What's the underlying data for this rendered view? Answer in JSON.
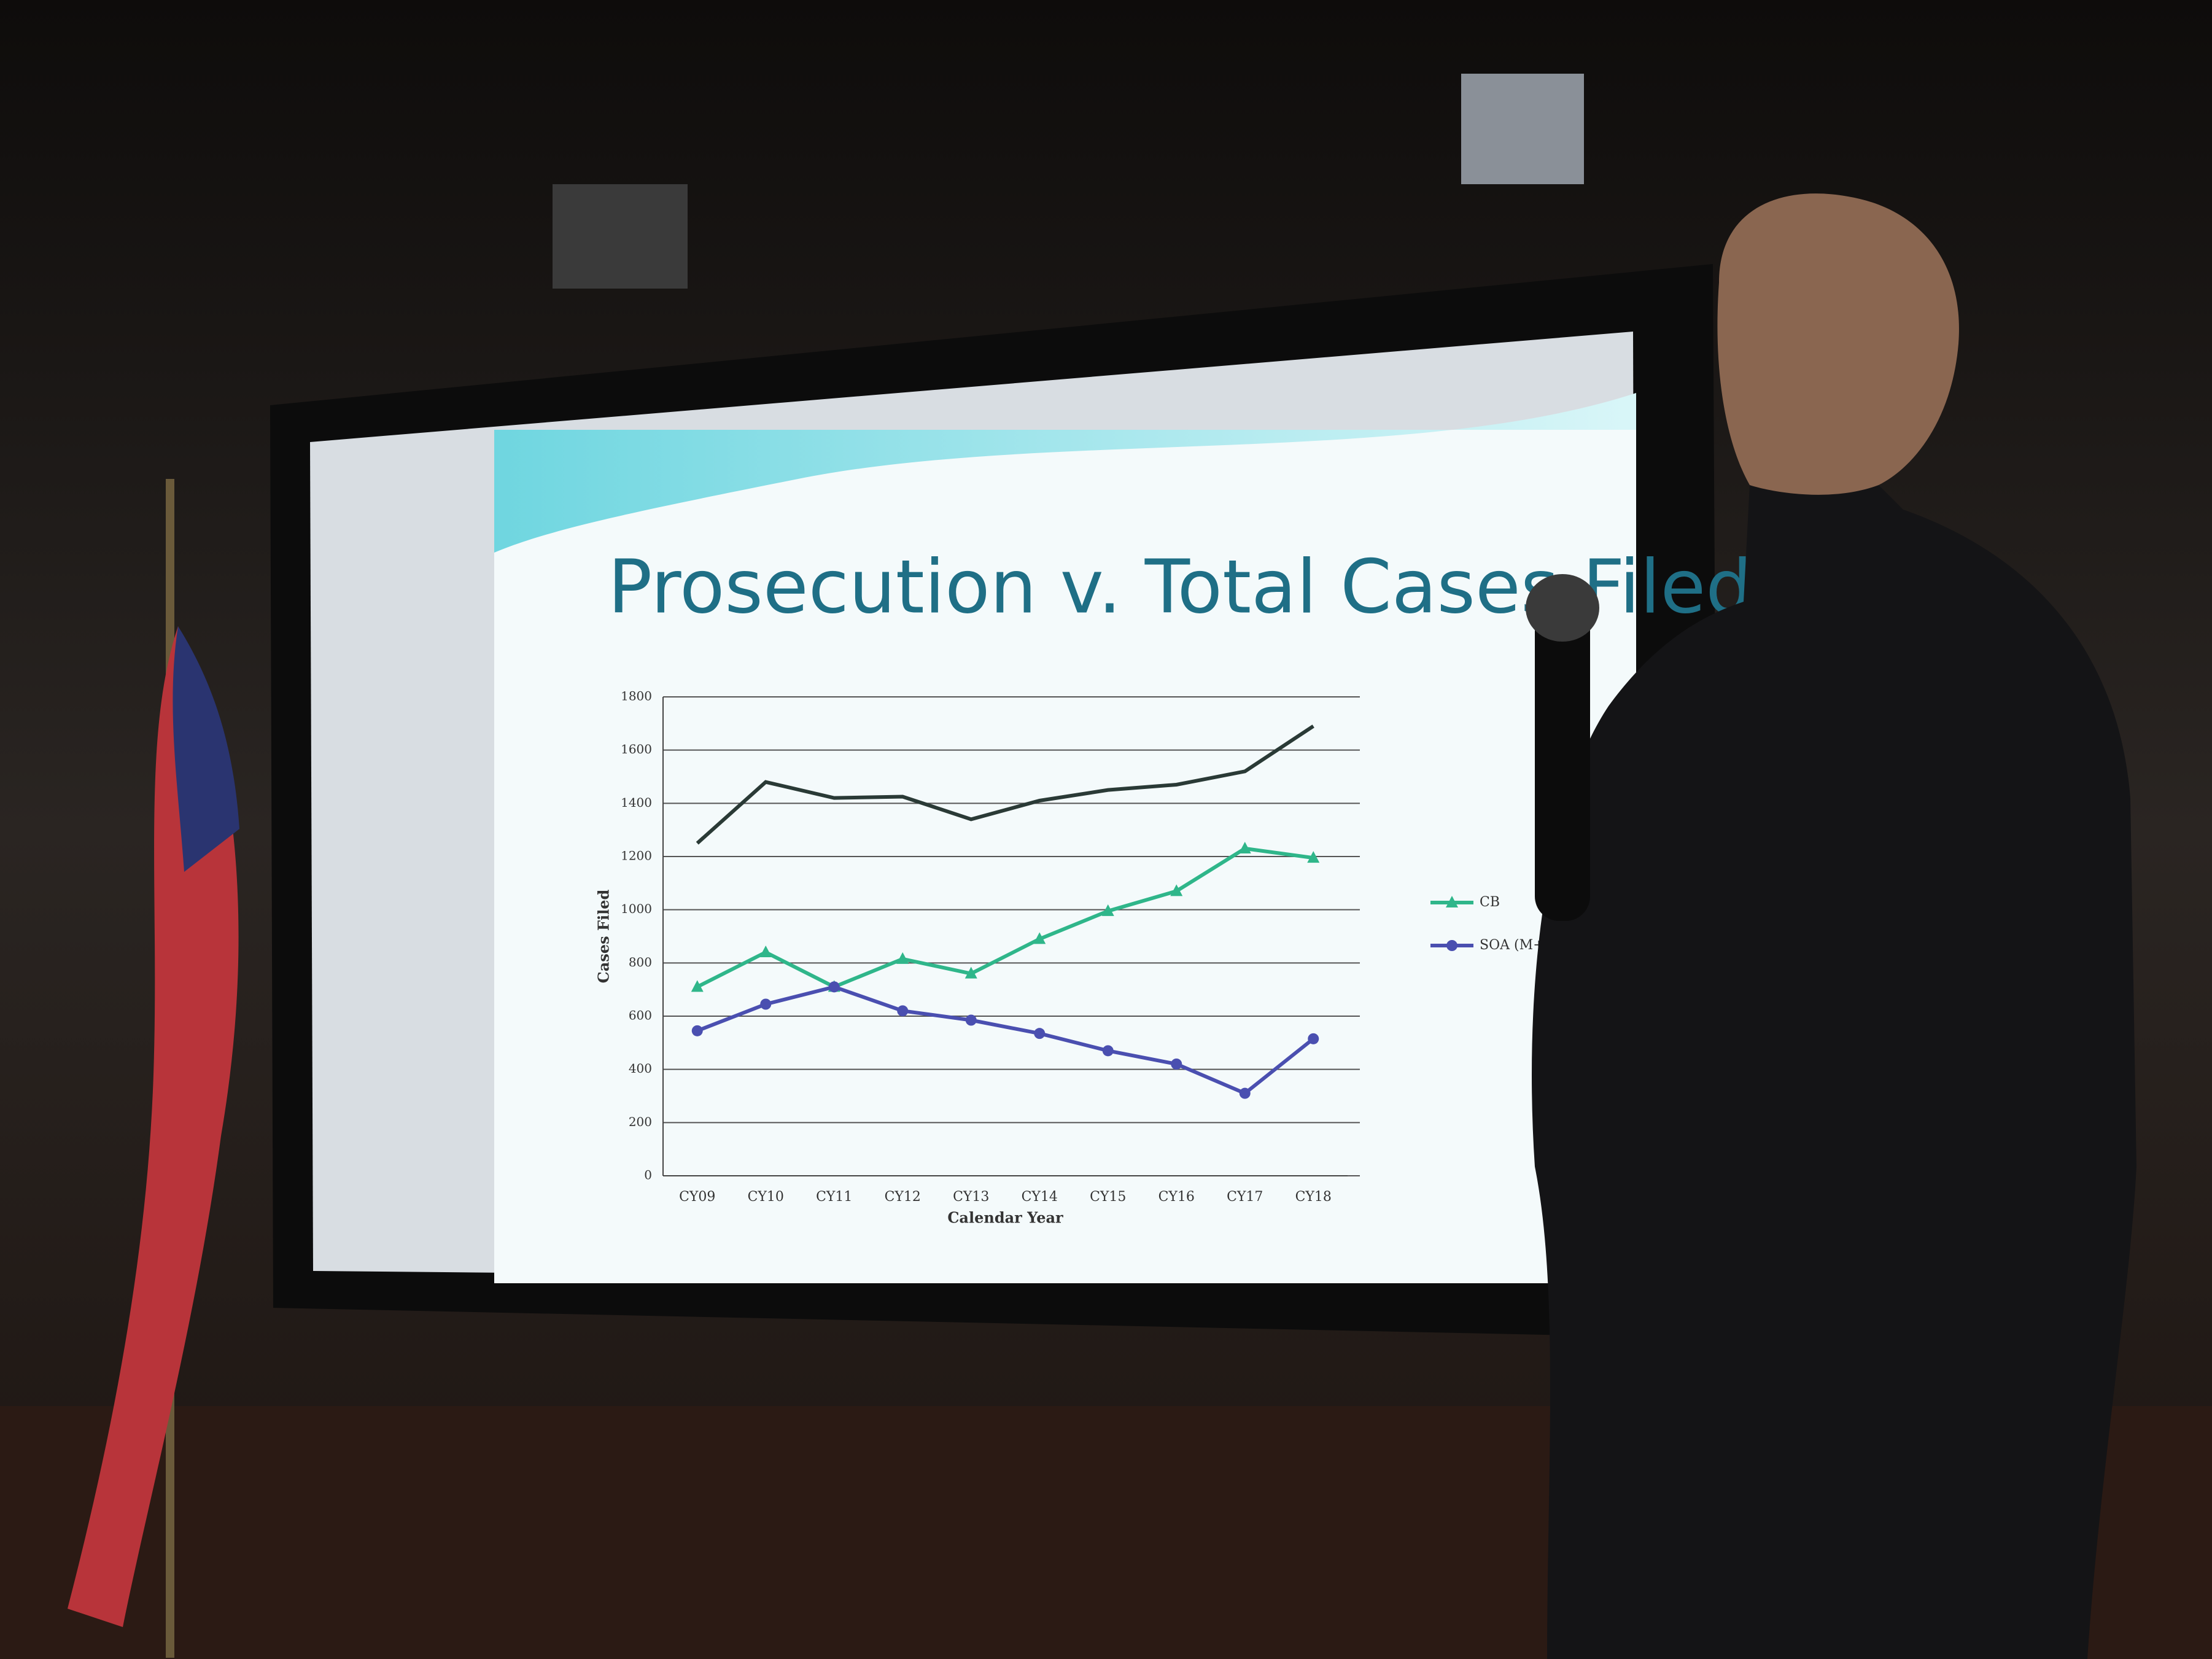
{
  "chart_data": {
    "type": "line",
    "title": "Prosecution v. Total Cases Filed",
    "xlabel": "Calendar Year",
    "ylabel": "Cases Filed",
    "categories": [
      "CY09",
      "CY10",
      "CY11",
      "CY12",
      "CY13",
      "CY14",
      "CY15",
      "CY16",
      "CY17",
      "CY18"
    ],
    "series": [
      {
        "color": "#2a3a36",
        "marker": "none",
        "values": [
          1250,
          1480,
          1420,
          1425,
          1340,
          1410,
          1450,
          1470,
          1520,
          1690
        ]
      },
      {
        "name": "CB",
        "color": "#2fb68a",
        "marker": "triangle",
        "values": [
          710,
          840,
          710,
          815,
          760,
          890,
          995,
          1070,
          1230,
          1195
        ]
      },
      {
        "name": "SOA (M+F)",
        "color": "#4a4fb0",
        "marker": "circle",
        "values": [
          545,
          645,
          710,
          620,
          585,
          535,
          470,
          420,
          310,
          515
        ]
      }
    ],
    "ylim": [
      0,
      1800
    ],
    "yticks": [
      0,
      200,
      400,
      600,
      800,
      1000,
      1200,
      1400,
      1600,
      1800
    ],
    "grid": true
  }
}
